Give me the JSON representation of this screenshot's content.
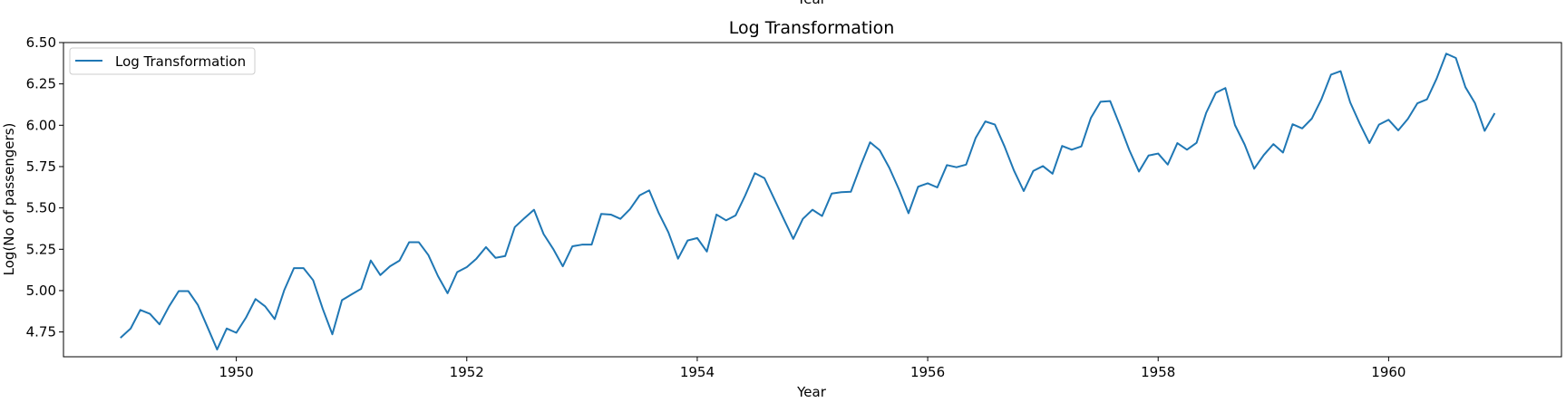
{
  "chart_data": {
    "type": "line",
    "title": "Log Transformation",
    "xlabel": "Year",
    "ylabel": "Log(No of passengers)",
    "clipped_top_label": "Year",
    "xlim": [
      1948.5,
      1961.5
    ],
    "ylim": [
      4.6,
      6.5
    ],
    "xticks": [
      1950,
      1952,
      1954,
      1956,
      1958,
      1960
    ],
    "xtick_labels": [
      "1950",
      "1952",
      "1954",
      "1956",
      "1958",
      "1960"
    ],
    "yticks": [
      4.75,
      5.0,
      5.25,
      5.5,
      5.75,
      6.0,
      6.25,
      6.5
    ],
    "ytick_labels": [
      "4.75",
      "5.00",
      "5.25",
      "5.50",
      "5.75",
      "6.00",
      "6.25",
      "6.50"
    ],
    "grid": false,
    "legend": {
      "placement": "top-left",
      "entries": [
        "Log Transformation"
      ]
    },
    "series": [
      {
        "name": "Log Transformation",
        "color": "#1f77b4",
        "x_start": 1949.0,
        "x_step_months": 1,
        "values": [
          4.718,
          4.771,
          4.883,
          4.86,
          4.796,
          4.905,
          4.997,
          4.997,
          4.913,
          4.779,
          4.644,
          4.771,
          4.745,
          4.836,
          4.949,
          4.905,
          4.828,
          5.004,
          5.136,
          5.136,
          5.063,
          4.89,
          4.736,
          4.942,
          4.977,
          5.011,
          5.182,
          5.094,
          5.147,
          5.182,
          5.293,
          5.293,
          5.215,
          5.088,
          4.984,
          5.112,
          5.142,
          5.193,
          5.263,
          5.198,
          5.209,
          5.384,
          5.438,
          5.489,
          5.342,
          5.252,
          5.147,
          5.268,
          5.278,
          5.278,
          5.464,
          5.46,
          5.434,
          5.493,
          5.576,
          5.606,
          5.468,
          5.352,
          5.193,
          5.303,
          5.318,
          5.236,
          5.46,
          5.425,
          5.455,
          5.576,
          5.71,
          5.68,
          5.557,
          5.434,
          5.313,
          5.434,
          5.489,
          5.451,
          5.587,
          5.595,
          5.598,
          5.753,
          5.897,
          5.849,
          5.743,
          5.613,
          5.468,
          5.628,
          5.649,
          5.624,
          5.759,
          5.746,
          5.762,
          5.924,
          6.023,
          6.004,
          5.872,
          5.724,
          5.602,
          5.724,
          5.753,
          5.707,
          5.875,
          5.852,
          5.872,
          6.045,
          6.142,
          6.146,
          6.001,
          5.849,
          5.72,
          5.817,
          5.829,
          5.762,
          5.892,
          5.852,
          5.894,
          6.075,
          6.196,
          6.225,
          6.001,
          5.884,
          5.737,
          5.82,
          5.886,
          5.835,
          6.006,
          5.981,
          6.04,
          6.157,
          6.306,
          6.327,
          6.138,
          6.009,
          5.892,
          6.004,
          6.033,
          5.969,
          6.038,
          6.133,
          6.157,
          6.282,
          6.433,
          6.407,
          6.23,
          6.133,
          5.966,
          6.068
        ]
      }
    ]
  }
}
